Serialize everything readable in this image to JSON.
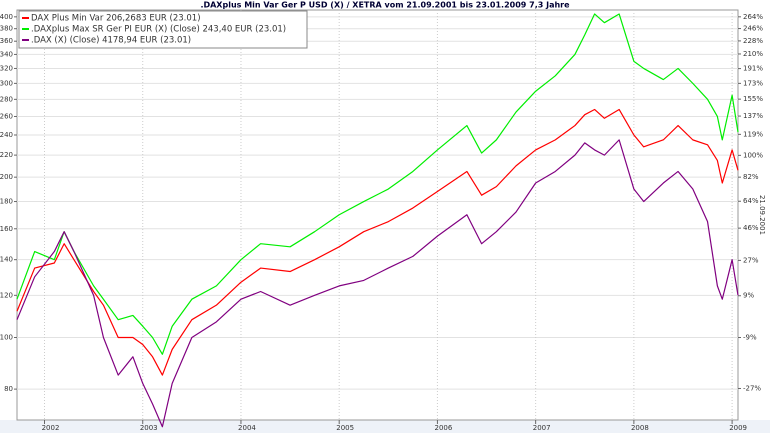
{
  "chart_data": {
    "type": "line",
    "title": ".DAXplus Min Var Ger P USD (X) / XETRA vom 21.09.2001 bis 23.01.2009 7,3 Jahre",
    "side_label": "21.09.2001",
    "log_scale": true,
    "grid": true,
    "legend": "upper left",
    "x": [
      2001.72,
      2001.9,
      2002.1,
      2002.2,
      2002.3,
      2002.5,
      2002.6,
      2002.75,
      2002.9,
      2003.0,
      2003.1,
      2003.2,
      2003.3,
      2003.5,
      2003.75,
      2004.0,
      2004.2,
      2004.5,
      2004.75,
      2005.0,
      2005.25,
      2005.5,
      2005.75,
      2006.0,
      2006.3,
      2006.45,
      2006.6,
      2006.8,
      2007.0,
      2007.2,
      2007.4,
      2007.5,
      2007.6,
      2007.7,
      2007.85,
      2008.0,
      2008.1,
      2008.3,
      2008.45,
      2008.6,
      2008.75,
      2008.85,
      2008.9,
      2009.0,
      2009.06
    ],
    "xlim": [
      2001.72,
      2009.06
    ],
    "xticks": [
      2002,
      2003,
      2004,
      2005,
      2006,
      2007,
      2008,
      2009
    ],
    "ylim": [
      70,
      412
    ],
    "yticks": [
      80,
      100,
      120,
      140,
      160,
      180,
      200,
      220,
      240,
      260,
      280,
      300,
      320,
      340,
      360,
      380,
      400
    ],
    "y2lim": [
      -36.3,
      274.9
    ],
    "y2ticks": [
      {
        "value": -27,
        "label": "-27%"
      },
      {
        "value": -9,
        "label": "-9%"
      },
      {
        "value": 9,
        "label": "9%"
      },
      {
        "value": 27,
        "label": "27%"
      },
      {
        "value": 46,
        "label": "46%"
      },
      {
        "value": 64,
        "label": "64%"
      },
      {
        "value": 82,
        "label": "82%"
      },
      {
        "value": 100,
        "label": "100%"
      },
      {
        "value": 119,
        "label": "119%"
      },
      {
        "value": 137,
        "label": "137%"
      },
      {
        "value": 155,
        "label": "155%"
      },
      {
        "value": 173,
        "label": "173%"
      },
      {
        "value": 191,
        "label": "191%"
      },
      {
        "value": 210,
        "label": "210%"
      },
      {
        "value": 228,
        "label": "228%"
      },
      {
        "value": 246,
        "label": "246%"
      },
      {
        "value": 264,
        "label": "264%"
      }
    ],
    "series": [
      {
        "name": "DAX Plus Min Var 206,2683 EUR (23.01)",
        "color": "#ff0000",
        "values": [
          112,
          135,
          138,
          150,
          140,
          122,
          115,
          100,
          100,
          97,
          92,
          85,
          95,
          108,
          115,
          127,
          135,
          133,
          140,
          148,
          158,
          165,
          175,
          188,
          205,
          185,
          192,
          210,
          225,
          235,
          250,
          262,
          268,
          258,
          268,
          240,
          228,
          235,
          250,
          235,
          230,
          215,
          195,
          225,
          206
        ]
      },
      {
        "name": ".DAXplus Max SR Ger PI EUR (X) (Close) 243,40 EUR (23.01)",
        "color": "#00ee00",
        "values": [
          118,
          145,
          140,
          158,
          145,
          125,
          118,
          108,
          110,
          105,
          100,
          93,
          105,
          118,
          125,
          140,
          150,
          148,
          158,
          170,
          180,
          190,
          205,
          225,
          250,
          222,
          235,
          265,
          290,
          310,
          340,
          370,
          405,
          390,
          405,
          330,
          320,
          305,
          320,
          300,
          280,
          260,
          235,
          285,
          243
        ]
      },
      {
        "name": ".DAX (X) (Close) 4178,94 EUR (23.01)",
        "color": "#800080",
        "values": [
          108,
          130,
          145,
          158,
          145,
          120,
          100,
          85,
          92,
          82,
          75,
          68,
          82,
          100,
          107,
          118,
          122,
          115,
          120,
          125,
          128,
          135,
          142,
          155,
          170,
          150,
          158,
          172,
          195,
          205,
          220,
          232,
          225,
          220,
          235,
          190,
          180,
          195,
          205,
          190,
          165,
          125,
          118,
          140,
          120
        ]
      }
    ]
  }
}
